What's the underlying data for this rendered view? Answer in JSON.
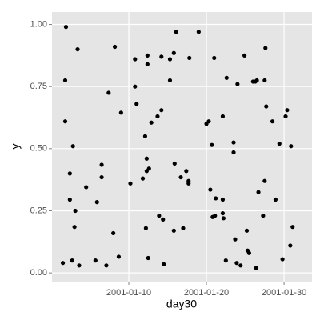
{
  "chart_data": {
    "type": "scatter",
    "x_label": "day30",
    "y_label": "y",
    "color": "#000000",
    "grid": true,
    "xlim": [
      0.1,
      33.6
    ],
    "ylim": [
      -0.035,
      1.05
    ],
    "xticks": [
      {
        "value": 10,
        "label": "2001-01-10"
      },
      {
        "value": 20,
        "label": "2001-01-20"
      },
      {
        "value": 30,
        "label": "2001-01-30"
      }
    ],
    "yticks": [
      {
        "value": 0,
        "label": "0.00"
      },
      {
        "value": 0.25,
        "label": "0.25"
      },
      {
        "value": 0.5,
        "label": "0.50"
      },
      {
        "value": 0.75,
        "label": "0.75"
      },
      {
        "value": 1,
        "label": "1.00"
      }
    ],
    "x": [
      1.5,
      1.9,
      1.8,
      1.8,
      2.4,
      2.8,
      2.4,
      2.7,
      3.1,
      3.0,
      3.4,
      3.6,
      4.5,
      5.7,
      5.9,
      6.5,
      6.5,
      7.1,
      7.4,
      8.0,
      8.2,
      8.7,
      9.0,
      10.2,
      10.8,
      11.0,
      10.8,
      11.8,
      12.1,
      12.2,
      12.3,
      12.3,
      12.6,
      12.4,
      12.4,
      12.5,
      12.9,
      13.7,
      13.9,
      14.2,
      14.2,
      14.5,
      14.4,
      15.3,
      15.3,
      15.8,
      15.9,
      16.1,
      15.8,
      16.7,
      17.0,
      17.4,
      17.7,
      17.7,
      17.8,
      19.0,
      20.0,
      20.3,
      20.5,
      20.7,
      20.8,
      21.0,
      21.1,
      21.2,
      22.1,
      22.1,
      22.1,
      22.2,
      22.5,
      22.6,
      23.5,
      23.5,
      23.7,
      23.9,
      24.0,
      24.4,
      24.9,
      25.2,
      25.3,
      25.5,
      26.0,
      26.3,
      26.5,
      26.4,
      26.7,
      27.3,
      27.5,
      27.5,
      27.6,
      27.7,
      28.5,
      28.9,
      29.4,
      29.8,
      30.2,
      30.4,
      30.8,
      30.9,
      31.1
    ],
    "values": [
      0.04,
      0.99,
      0.775,
      0.61,
      0.4,
      0.51,
      0.295,
      0.05,
      0.25,
      0.185,
      0.9,
      0.03,
      0.345,
      0.05,
      0.285,
      0.435,
      0.385,
      0.03,
      0.725,
      0.16,
      0.91,
      0.065,
      0.645,
      0.36,
      0.75,
      0.68,
      0.86,
      0.38,
      0.55,
      0.18,
      0.46,
      0.41,
      0.42,
      0.875,
      0.84,
      0.06,
      0.605,
      0.63,
      0.23,
      0.655,
      0.87,
      0.035,
      0.215,
      0.86,
      0.775,
      0.885,
      0.44,
      0.97,
      0.17,
      0.385,
      0.18,
      0.41,
      0.37,
      0.36,
      0.865,
      0.97,
      0.6,
      0.61,
      0.335,
      0.515,
      0.225,
      0.865,
      0.23,
      0.3,
      0.63,
      0.295,
      0.24,
      0.22,
      0.05,
      0.785,
      0.485,
      0.525,
      0.135,
      0.04,
      0.76,
      0.03,
      0.875,
      0.17,
      0.09,
      0.08,
      0.77,
      0.77,
      0.775,
      0.02,
      0.325,
      0.23,
      0.775,
      0.37,
      0.905,
      0.67,
      0.61,
      0.295,
      0.52,
      0.055,
      0.63,
      0.655,
      0.11,
      0.51,
      0.185
    ]
  }
}
